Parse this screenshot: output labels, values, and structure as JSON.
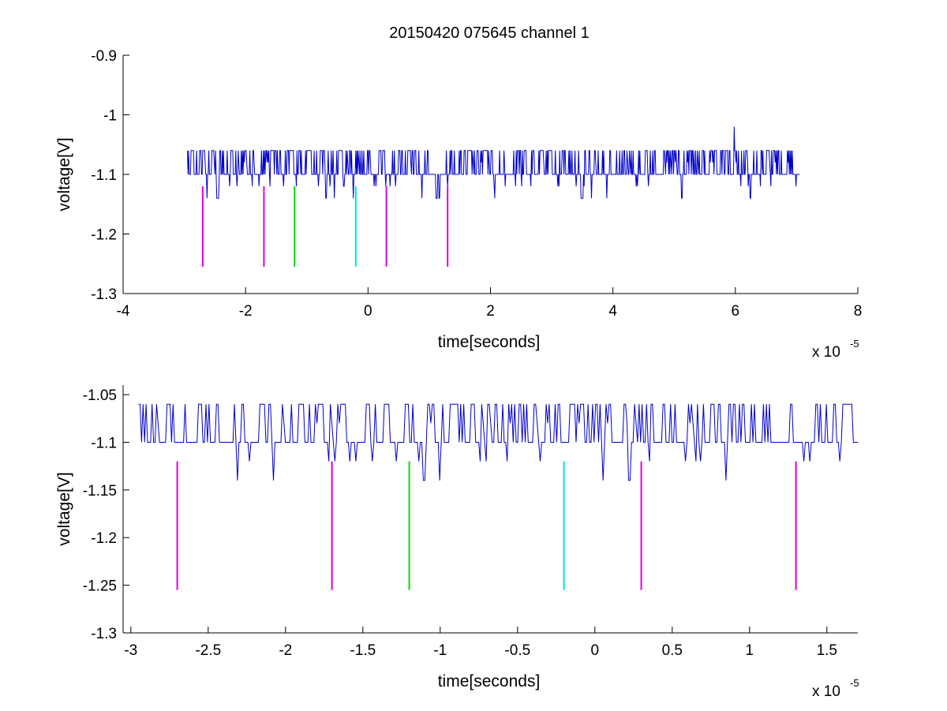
{
  "figure": {
    "title": "20150420 075645 channel 1"
  },
  "chart_data": [
    {
      "type": "line",
      "title": "20150420 075645 channel 1",
      "xlabel": "time[seconds]",
      "ylabel": "voltage[V]",
      "x_exponent_label": "x 10",
      "x_exponent": "-5",
      "xlim": [
        -4,
        8
      ],
      "ylim": [
        -1.3,
        -0.9
      ],
      "x_ticks": [
        -4,
        -2,
        0,
        2,
        4,
        6,
        8
      ],
      "x_tick_labels": [
        "-4",
        "-2",
        "0",
        "2",
        "4",
        "6",
        "8"
      ],
      "y_ticks": [
        -1.3,
        -1.2,
        -1.1,
        -1.0,
        -0.9
      ],
      "y_tick_labels": [
        "-1.3",
        "-1.2",
        "-1.1",
        "-1",
        "-0.9"
      ],
      "grid": false,
      "signal": {
        "color": "#0000cc",
        "x_range": [
          -2.95,
          7.05
        ],
        "levels": [
          -1.06,
          -1.1,
          -1.14
        ],
        "baseline": -1.1,
        "spike": {
          "x": 5.98,
          "y": -1.02
        }
      },
      "markers": [
        {
          "x": -2.7,
          "y_top": -1.12,
          "y_bottom": -1.255,
          "color": "#e000e0"
        },
        {
          "x": -1.7,
          "y_top": -1.12,
          "y_bottom": -1.255,
          "color": "#e000e0"
        },
        {
          "x": -1.2,
          "y_top": -1.12,
          "y_bottom": -1.255,
          "color": "#00dd00"
        },
        {
          "x": -0.2,
          "y_top": -1.12,
          "y_bottom": -1.255,
          "color": "#00e0e0"
        },
        {
          "x": 0.3,
          "y_top": -1.12,
          "y_bottom": -1.255,
          "color": "#e000e0"
        },
        {
          "x": 1.3,
          "y_top": -1.12,
          "y_bottom": -1.255,
          "color": "#e000e0"
        }
      ]
    },
    {
      "type": "line",
      "title": "",
      "xlabel": "time[seconds]",
      "ylabel": "voltage[V]",
      "x_exponent_label": "x 10",
      "x_exponent": "-5",
      "xlim": [
        -3.05,
        1.7
      ],
      "ylim": [
        -1.3,
        -1.04
      ],
      "x_ticks": [
        -3,
        -2.5,
        -2,
        -1.5,
        -1,
        -0.5,
        0,
        0.5,
        1,
        1.5
      ],
      "x_tick_labels": [
        "-3",
        "-2.5",
        "-2",
        "-1.5",
        "-1",
        "-0.5",
        "0",
        "0.5",
        "1",
        "1.5"
      ],
      "y_ticks": [
        -1.3,
        -1.25,
        -1.2,
        -1.15,
        -1.1,
        -1.05
      ],
      "y_tick_labels": [
        "-1.3",
        "-1.25",
        "-1.2",
        "-1.15",
        "-1.1",
        "-1.05"
      ],
      "grid": false,
      "signal": {
        "color": "#0000cc",
        "x_range": [
          -2.95,
          1.7
        ],
        "levels": [
          -1.06,
          -1.1,
          -1.14
        ],
        "baseline": -1.1
      },
      "markers": [
        {
          "x": -2.7,
          "y_top": -1.12,
          "y_bottom": -1.255,
          "color": "#e000e0"
        },
        {
          "x": -1.7,
          "y_top": -1.12,
          "y_bottom": -1.255,
          "color": "#e000e0"
        },
        {
          "x": -1.2,
          "y_top": -1.12,
          "y_bottom": -1.255,
          "color": "#00dd00"
        },
        {
          "x": -0.2,
          "y_top": -1.12,
          "y_bottom": -1.255,
          "color": "#00e0e0"
        },
        {
          "x": 0.3,
          "y_top": -1.12,
          "y_bottom": -1.255,
          "color": "#e000e0"
        },
        {
          "x": 1.3,
          "y_top": -1.12,
          "y_bottom": -1.255,
          "color": "#e000e0"
        }
      ]
    }
  ]
}
